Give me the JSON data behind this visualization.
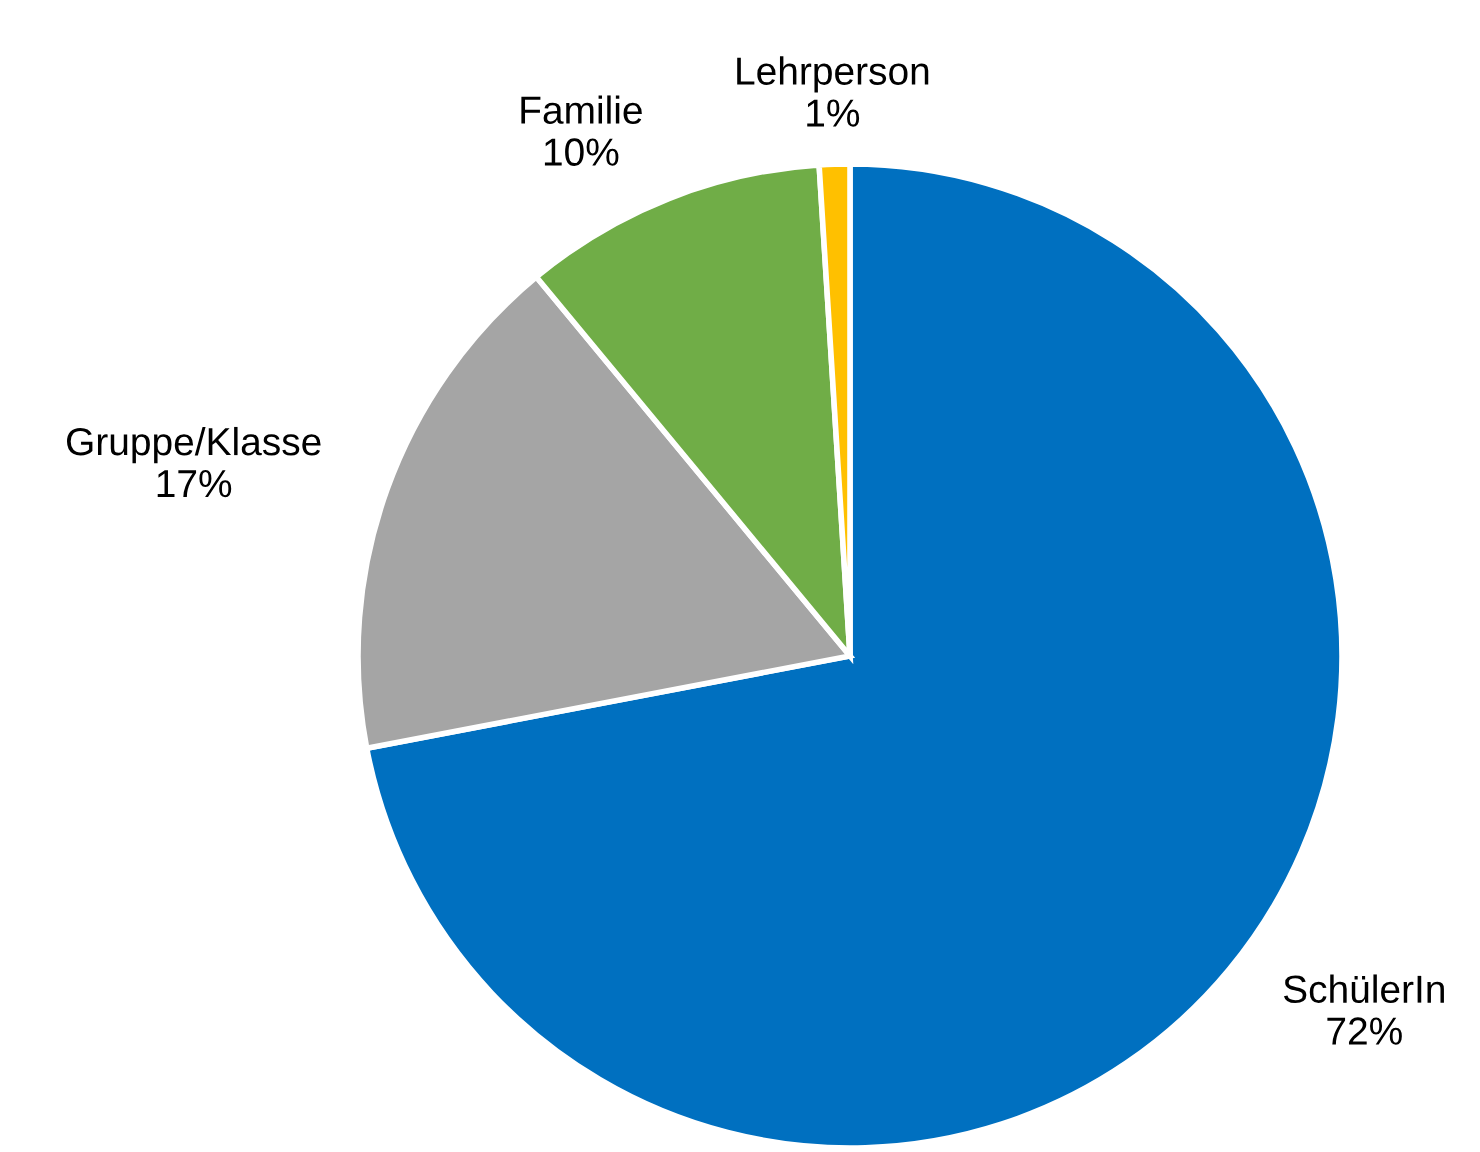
{
  "chart_data": {
    "type": "pie",
    "categories": [
      "SchülerIn",
      "Gruppe/Klasse",
      "Familie",
      "Lehrperson"
    ],
    "values": [
      72,
      17,
      10,
      1
    ],
    "colors": [
      "#0070c0",
      "#a5a5a5",
      "#70ad47",
      "#ffc000"
    ],
    "value_labels": [
      "72%",
      "17%",
      "10%",
      "1%"
    ]
  }
}
